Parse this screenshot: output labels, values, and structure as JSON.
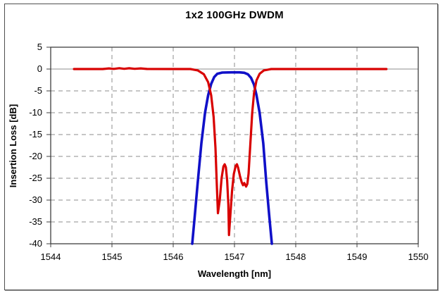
{
  "window": {
    "background": "#ffffff",
    "frame_border_color": "#4f4f4f"
  },
  "chart_data": {
    "type": "line",
    "title": "1x2 100GHz DWDM",
    "xlabel": "Wavelength [nm]",
    "ylabel": "Insertion Loss [dB]",
    "xlim": [
      1544,
      1550
    ],
    "ylim": [
      -40,
      5
    ],
    "x_ticks": [
      1544,
      1545,
      1546,
      1547,
      1548,
      1549,
      1550
    ],
    "y_ticks": [
      5,
      0,
      -5,
      -10,
      -15,
      -20,
      -25,
      -30,
      -35,
      -40
    ],
    "grid": "dashed gray gridlines; solid gray line at 0 dB",
    "legend": "none",
    "colors": {
      "grid": "#8c8c8c",
      "zero_line": "#8c8c8c",
      "axis": "#3f3f3f",
      "red_series": "#d80000",
      "blue_series": "#1010c8"
    },
    "series": [
      {
        "name": "blue",
        "color": "#1010c8",
        "width": 3.6,
        "description": "passband filter response centered near 1547 nm, flat top ~-0.8 dB from ~1546.75 to ~1547.2 nm, steep skirts reaching -40 dB at 1546.31 and 1547.61 nm",
        "points": [
          [
            1546.31,
            -40
          ],
          [
            1546.35,
            -34
          ],
          [
            1546.4,
            -26
          ],
          [
            1546.46,
            -17
          ],
          [
            1546.52,
            -10
          ],
          [
            1546.57,
            -6
          ],
          [
            1546.62,
            -3.4
          ],
          [
            1546.67,
            -1.8
          ],
          [
            1546.72,
            -1.1
          ],
          [
            1546.8,
            -0.8
          ],
          [
            1546.95,
            -0.75
          ],
          [
            1547.08,
            -0.75
          ],
          [
            1547.16,
            -0.85
          ],
          [
            1547.22,
            -1.2
          ],
          [
            1547.27,
            -2
          ],
          [
            1547.32,
            -3.6
          ],
          [
            1547.36,
            -6
          ],
          [
            1547.41,
            -10
          ],
          [
            1547.47,
            -17
          ],
          [
            1547.52,
            -26
          ],
          [
            1547.57,
            -34
          ],
          [
            1547.61,
            -40
          ]
        ]
      },
      {
        "name": "red",
        "color": "#d80000",
        "width": 3.2,
        "description": "notch/reflect response: 0 dB from 1544.38 to ~1546.4 nm and ~1547.5 to 1549.48 nm, with notch dips to about -33, -38 and -26.5 dB between 1546.7 and 1547.25 nm; small ~0.2 dB ripple near 1545-1545.6 nm",
        "points": [
          [
            1544.38,
            0
          ],
          [
            1544.85,
            0
          ],
          [
            1544.95,
            0.15
          ],
          [
            1545.03,
            0.03
          ],
          [
            1545.12,
            0.2
          ],
          [
            1545.2,
            0.05
          ],
          [
            1545.28,
            0.18
          ],
          [
            1545.37,
            0.05
          ],
          [
            1545.47,
            0.15
          ],
          [
            1545.57,
            0.02
          ],
          [
            1546.28,
            0
          ],
          [
            1546.4,
            -0.3
          ],
          [
            1546.5,
            -1.2
          ],
          [
            1546.57,
            -3
          ],
          [
            1546.62,
            -6
          ],
          [
            1546.66,
            -11
          ],
          [
            1546.69,
            -18
          ],
          [
            1546.71,
            -26
          ],
          [
            1546.73,
            -33
          ],
          [
            1546.76,
            -30
          ],
          [
            1546.79,
            -25
          ],
          [
            1546.82,
            -22.3
          ],
          [
            1546.84,
            -21.8
          ],
          [
            1546.86,
            -22.5
          ],
          [
            1546.88,
            -25.5
          ],
          [
            1546.9,
            -31
          ],
          [
            1546.91,
            -38
          ],
          [
            1546.93,
            -34
          ],
          [
            1546.96,
            -28
          ],
          [
            1546.99,
            -24
          ],
          [
            1547.02,
            -22.2
          ],
          [
            1547.04,
            -21.8
          ],
          [
            1547.06,
            -22.6
          ],
          [
            1547.09,
            -24.5
          ],
          [
            1547.12,
            -26
          ],
          [
            1547.14,
            -26.6
          ],
          [
            1547.16,
            -26.1
          ],
          [
            1547.19,
            -26.9
          ],
          [
            1547.21,
            -26.3
          ],
          [
            1547.23,
            -24
          ],
          [
            1547.26,
            -17
          ],
          [
            1547.29,
            -10
          ],
          [
            1547.32,
            -5.5
          ],
          [
            1547.36,
            -2.6
          ],
          [
            1547.41,
            -1.1
          ],
          [
            1547.48,
            -0.3
          ],
          [
            1547.6,
            0
          ],
          [
            1549.48,
            0
          ]
        ]
      }
    ]
  }
}
